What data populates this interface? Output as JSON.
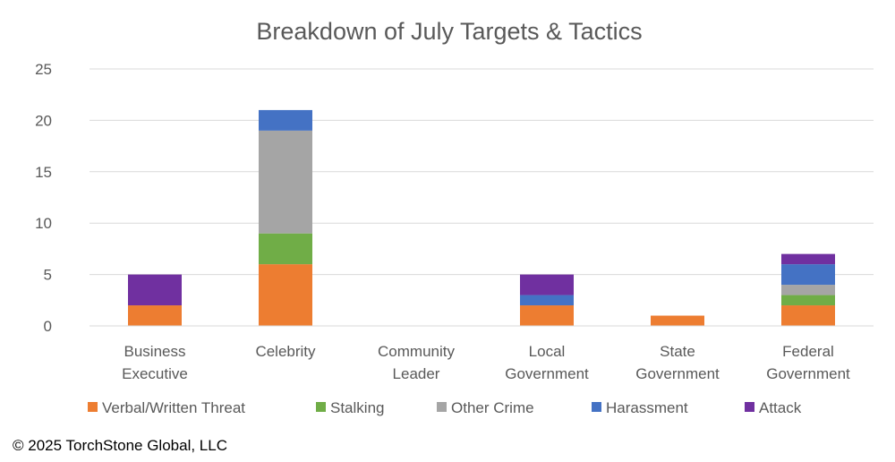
{
  "chart_data": {
    "type": "bar",
    "stacked": true,
    "title": "Breakdown of July Targets & Tactics",
    "categories": [
      [
        "Business",
        "Executive"
      ],
      [
        "Celebrity"
      ],
      [
        "Community",
        "Leader"
      ],
      [
        "Local",
        "Government"
      ],
      [
        "State",
        "Government"
      ],
      [
        "Federal",
        "Government"
      ]
    ],
    "series": [
      {
        "name": "Verbal/Written Threat",
        "color": "#ED7D31",
        "values": [
          2,
          6,
          0,
          2,
          1,
          2
        ]
      },
      {
        "name": "Stalking",
        "color": "#70AD47",
        "values": [
          0,
          3,
          0,
          0,
          0,
          1
        ]
      },
      {
        "name": "Other Crime",
        "color": "#A5A5A5",
        "values": [
          0,
          10,
          0,
          0,
          0,
          1
        ]
      },
      {
        "name": "Harassment",
        "color": "#4472C4",
        "values": [
          0,
          2,
          0,
          1,
          0,
          2
        ]
      },
      {
        "name": "Attack",
        "color": "#7030A0",
        "values": [
          3,
          0,
          0,
          2,
          0,
          1
        ]
      }
    ],
    "ylim": [
      0,
      25
    ],
    "yticks": [
      0,
      5,
      10,
      15,
      20,
      25
    ],
    "grid": true,
    "legend": "bottom"
  },
  "footer": {
    "copyright": "© 2025 TorchStone Global, LLC"
  }
}
